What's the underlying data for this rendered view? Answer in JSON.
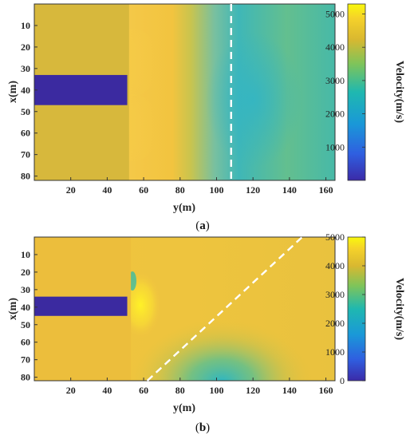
{
  "chart_data": [
    {
      "type": "heatmap",
      "panel": "a",
      "caption_letter": "a",
      "xlabel": "y(m)",
      "ylabel": "x(m)",
      "x_ticks": [
        20,
        40,
        60,
        80,
        100,
        120,
        140,
        160
      ],
      "y_ticks": [
        10,
        20,
        30,
        40,
        50,
        60,
        70,
        80
      ],
      "xlim": [
        0,
        165
      ],
      "ylim": [
        0,
        82
      ],
      "y_axis_reversed": true,
      "colorbar": {
        "label": "Velocity(m/s)",
        "ticks": [
          1000,
          2000,
          3000,
          4000,
          5000
        ],
        "range": [
          0,
          5300
        ]
      },
      "regions": {
        "left_medium_velocity": 4100,
        "block": {
          "y_range": [
            0,
            51
          ],
          "x_range": [
            33,
            47
          ],
          "velocity": 300
        },
        "interface_y": 52,
        "right_fall_off_y": 108,
        "right_min_velocity": 2600
      },
      "dashed_line": {
        "from": [
          108,
          0
        ],
        "to": [
          108,
          82
        ]
      }
    },
    {
      "type": "heatmap",
      "panel": "b",
      "caption_letter": "b",
      "xlabel": "y(m)",
      "ylabel": "x(m)",
      "x_ticks": [
        20,
        40,
        60,
        80,
        100,
        120,
        140,
        160
      ],
      "y_ticks": [
        10,
        20,
        30,
        40,
        50,
        60,
        70,
        80
      ],
      "xlim": [
        0,
        165
      ],
      "ylim": [
        0,
        82
      ],
      "y_axis_reversed": true,
      "colorbar": {
        "label": "Velocity(m/s)",
        "ticks": [
          0,
          1000,
          2000,
          3000,
          4000,
          5000
        ],
        "range": [
          0,
          5000
        ]
      },
      "regions": {
        "left_medium_velocity": 4200,
        "block": {
          "y_range": [
            0,
            51
          ],
          "x_range": [
            34,
            45
          ],
          "velocity": 300
        },
        "interface_y": 53,
        "low_velocity_center": [
          100,
          80
        ],
        "low_velocity_min": 2500
      },
      "dashed_line": {
        "from": [
          62,
          82
        ],
        "to": [
          147,
          0
        ]
      }
    }
  ]
}
